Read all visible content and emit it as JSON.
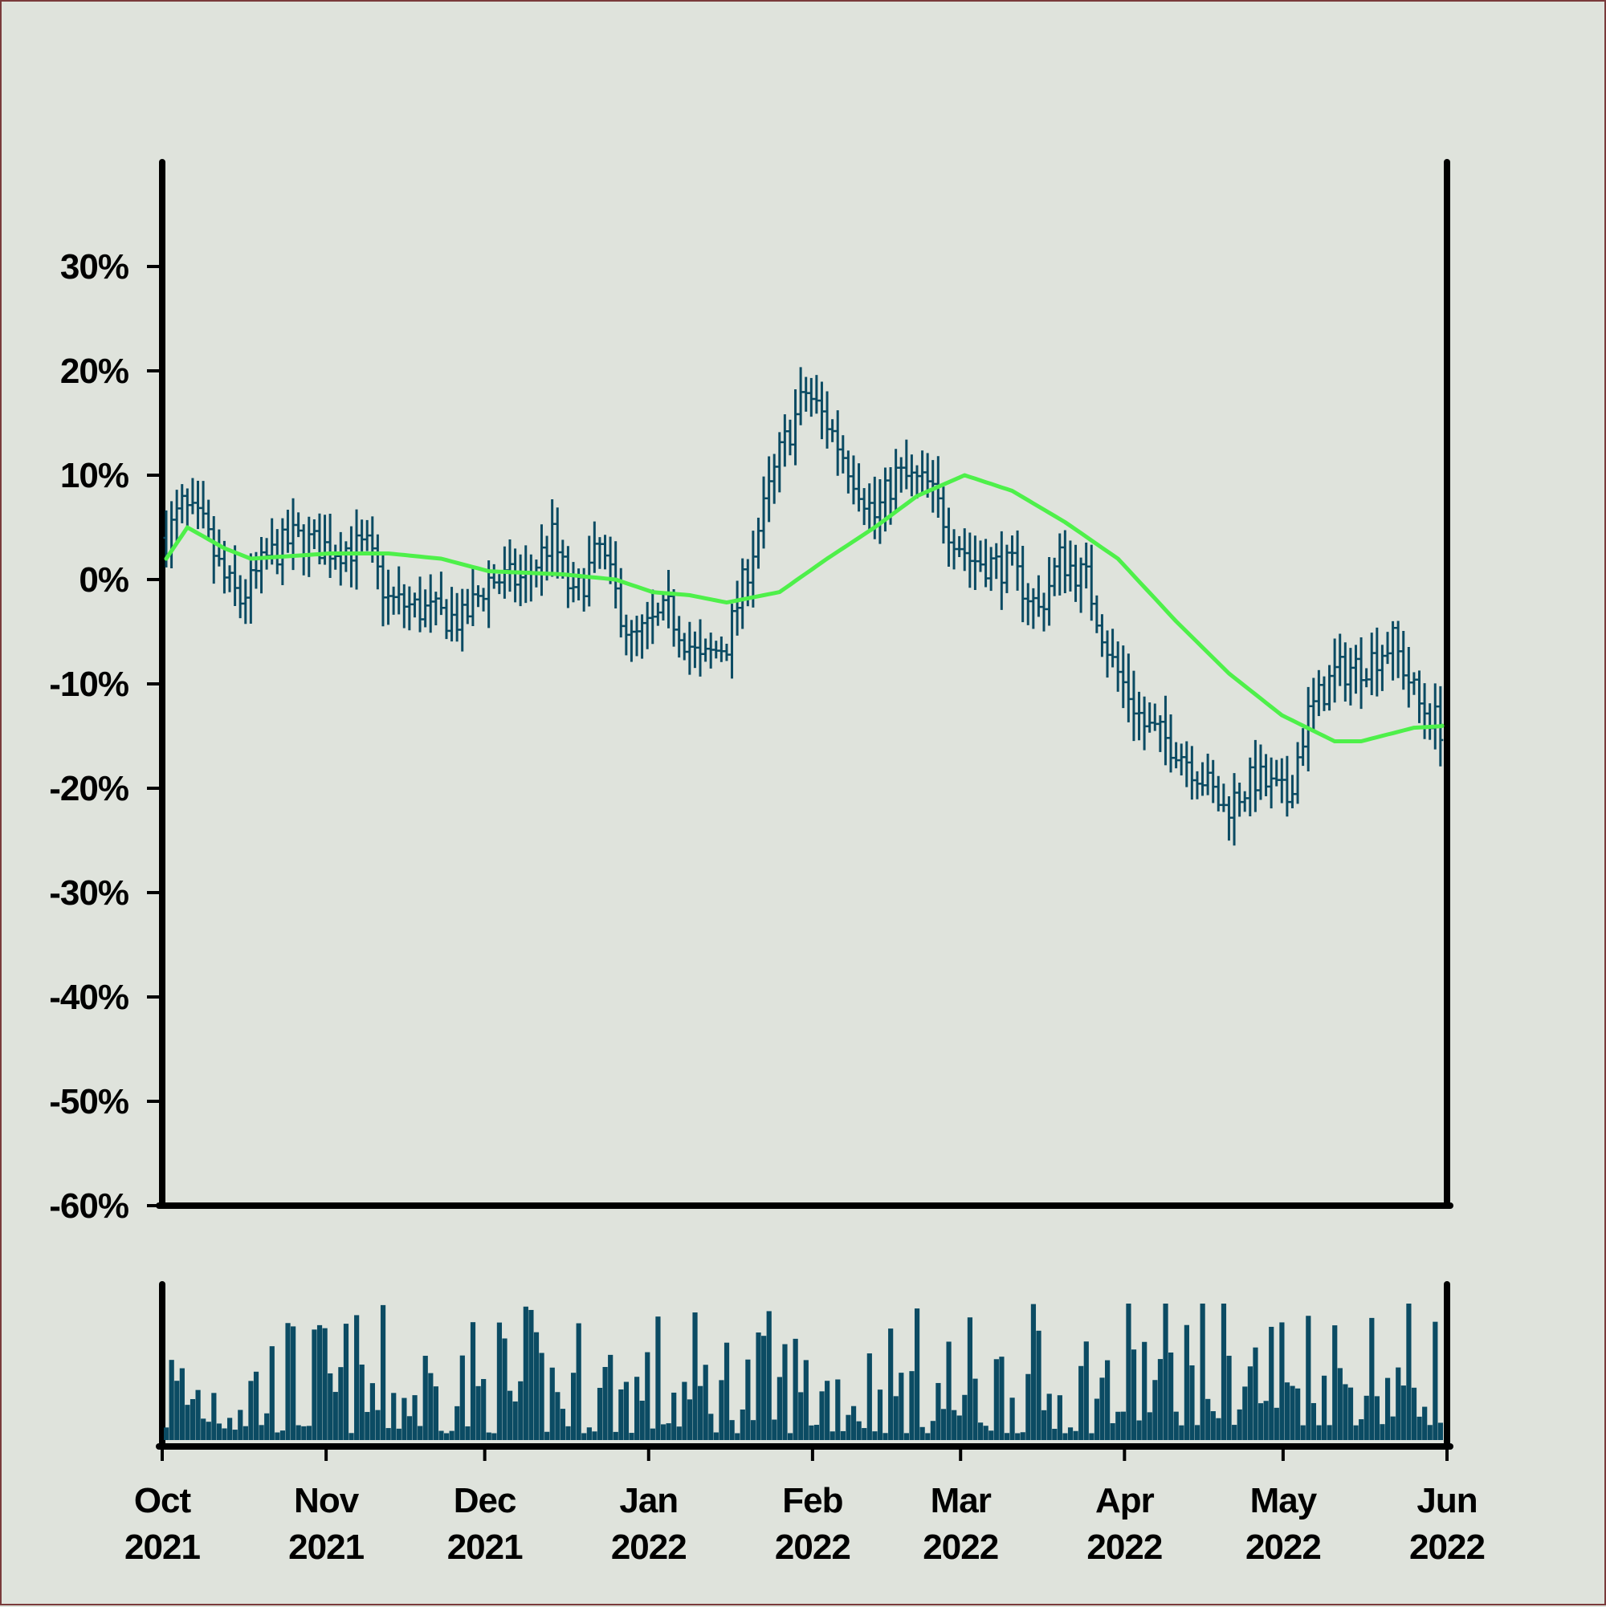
{
  "chart_data": [
    {
      "type": "ohlc",
      "title": "",
      "xlabel": "",
      "ylabel": "",
      "ylim": [
        -60,
        40
      ],
      "x_range": [
        "2021-10-01",
        "2022-06-01"
      ],
      "y_ticks": [
        {
          "value": 30,
          "label": "30%"
        },
        {
          "value": 20,
          "label": "20%"
        },
        {
          "value": 10,
          "label": "10%"
        },
        {
          "value": 0,
          "label": "0%"
        },
        {
          "value": -10,
          "label": "-10%"
        },
        {
          "value": -20,
          "label": "-20%"
        },
        {
          "value": -30,
          "label": "-30%"
        },
        {
          "value": -40,
          "label": "-40%"
        },
        {
          "value": -50,
          "label": "-50%"
        },
        {
          "value": -60,
          "label": "-60%"
        }
      ],
      "bar_color": "#0b4b63",
      "moving_average_color": "#4ef04a",
      "grid": false,
      "legend": "none",
      "price_close_anchors": [
        {
          "date": "2021-10-01",
          "value": 4
        },
        {
          "date": "2021-10-04",
          "value": 7
        },
        {
          "date": "2021-10-08",
          "value": 5
        },
        {
          "date": "2021-10-12",
          "value": 0
        },
        {
          "date": "2021-10-15",
          "value": -2
        },
        {
          "date": "2021-10-20",
          "value": 2
        },
        {
          "date": "2021-10-25",
          "value": 4
        },
        {
          "date": "2021-11-01",
          "value": 3
        },
        {
          "date": "2021-11-08",
          "value": 3
        },
        {
          "date": "2021-11-12",
          "value": -2
        },
        {
          "date": "2021-11-19",
          "value": -3
        },
        {
          "date": "2021-11-26",
          "value": -4
        },
        {
          "date": "2021-12-01",
          "value": 0
        },
        {
          "date": "2021-12-08",
          "value": 0
        },
        {
          "date": "2021-12-13",
          "value": 4
        },
        {
          "date": "2021-12-17",
          "value": -2
        },
        {
          "date": "2021-12-22",
          "value": 3
        },
        {
          "date": "2021-12-28",
          "value": -6
        },
        {
          "date": "2022-01-04",
          "value": -3
        },
        {
          "date": "2022-01-10",
          "value": -8
        },
        {
          "date": "2022-01-15",
          "value": -6
        },
        {
          "date": "2022-01-20",
          "value": 3
        },
        {
          "date": "2022-01-25",
          "value": 12
        },
        {
          "date": "2022-01-30",
          "value": 18
        },
        {
          "date": "2022-02-03",
          "value": 15
        },
        {
          "date": "2022-02-08",
          "value": 10
        },
        {
          "date": "2022-02-12",
          "value": 6
        },
        {
          "date": "2022-02-16",
          "value": 10
        },
        {
          "date": "2022-02-22",
          "value": 9
        },
        {
          "date": "2022-02-26",
          "value": 5
        },
        {
          "date": "2022-03-02",
          "value": 2
        },
        {
          "date": "2022-03-10",
          "value": 1
        },
        {
          "date": "2022-03-15",
          "value": -3
        },
        {
          "date": "2022-03-19",
          "value": 2
        },
        {
          "date": "2022-03-24",
          "value": 0
        },
        {
          "date": "2022-03-29",
          "value": -8
        },
        {
          "date": "2022-04-04",
          "value": -14
        },
        {
          "date": "2022-04-10",
          "value": -16
        },
        {
          "date": "2022-04-15",
          "value": -19
        },
        {
          "date": "2022-04-19",
          "value": -22
        },
        {
          "date": "2022-04-25",
          "value": -19
        },
        {
          "date": "2022-05-01",
          "value": -21
        },
        {
          "date": "2022-05-05",
          "value": -13
        },
        {
          "date": "2022-05-10",
          "value": -9
        },
        {
          "date": "2022-05-16",
          "value": -8
        },
        {
          "date": "2022-05-21",
          "value": -6
        },
        {
          "date": "2022-05-26",
          "value": -12
        },
        {
          "date": "2022-06-01",
          "value": -15
        }
      ],
      "moving_average_anchors": [
        {
          "date": "2021-10-01",
          "value": 2
        },
        {
          "date": "2021-10-05",
          "value": 5
        },
        {
          "date": "2021-10-12",
          "value": 3
        },
        {
          "date": "2021-10-17",
          "value": 2
        },
        {
          "date": "2021-11-01",
          "value": 2.5
        },
        {
          "date": "2021-11-12",
          "value": 2.5
        },
        {
          "date": "2021-11-22",
          "value": 2
        },
        {
          "date": "2021-12-01",
          "value": 0.8
        },
        {
          "date": "2021-12-15",
          "value": 0.5
        },
        {
          "date": "2021-12-25",
          "value": 0
        },
        {
          "date": "2022-01-01",
          "value": -1.2
        },
        {
          "date": "2022-01-08",
          "value": -1.5
        },
        {
          "date": "2022-01-15",
          "value": -2.2
        },
        {
          "date": "2022-01-25",
          "value": -1.2
        },
        {
          "date": "2022-02-03",
          "value": 2
        },
        {
          "date": "2022-02-12",
          "value": 5
        },
        {
          "date": "2022-02-20",
          "value": 8
        },
        {
          "date": "2022-03-01",
          "value": 10
        },
        {
          "date": "2022-03-10",
          "value": 8.5
        },
        {
          "date": "2022-03-20",
          "value": 5.5
        },
        {
          "date": "2022-03-30",
          "value": 2
        },
        {
          "date": "2022-04-10",
          "value": -4
        },
        {
          "date": "2022-04-20",
          "value": -9
        },
        {
          "date": "2022-04-30",
          "value": -13
        },
        {
          "date": "2022-05-10",
          "value": -15.5
        },
        {
          "date": "2022-05-15",
          "value": -15.5
        },
        {
          "date": "2022-05-25",
          "value": -14.2
        },
        {
          "date": "2022-06-01",
          "value": -14
        }
      ]
    },
    {
      "type": "bar",
      "title": "",
      "xlabel": "",
      "ylabel": "",
      "bar_color": "#0b4b63",
      "x_tick_labels": [
        {
          "month": "Oct",
          "year": "2021"
        },
        {
          "month": "Nov",
          "year": "2021"
        },
        {
          "month": "Dec",
          "year": "2021"
        },
        {
          "month": "Jan",
          "year": "2022"
        },
        {
          "month": "Feb",
          "year": "2022"
        },
        {
          "month": "Mar",
          "year": "2022"
        },
        {
          "month": "Apr",
          "year": "2022"
        },
        {
          "month": "May",
          "year": "2022"
        },
        {
          "month": "Jun",
          "year": "2022"
        }
      ]
    }
  ]
}
